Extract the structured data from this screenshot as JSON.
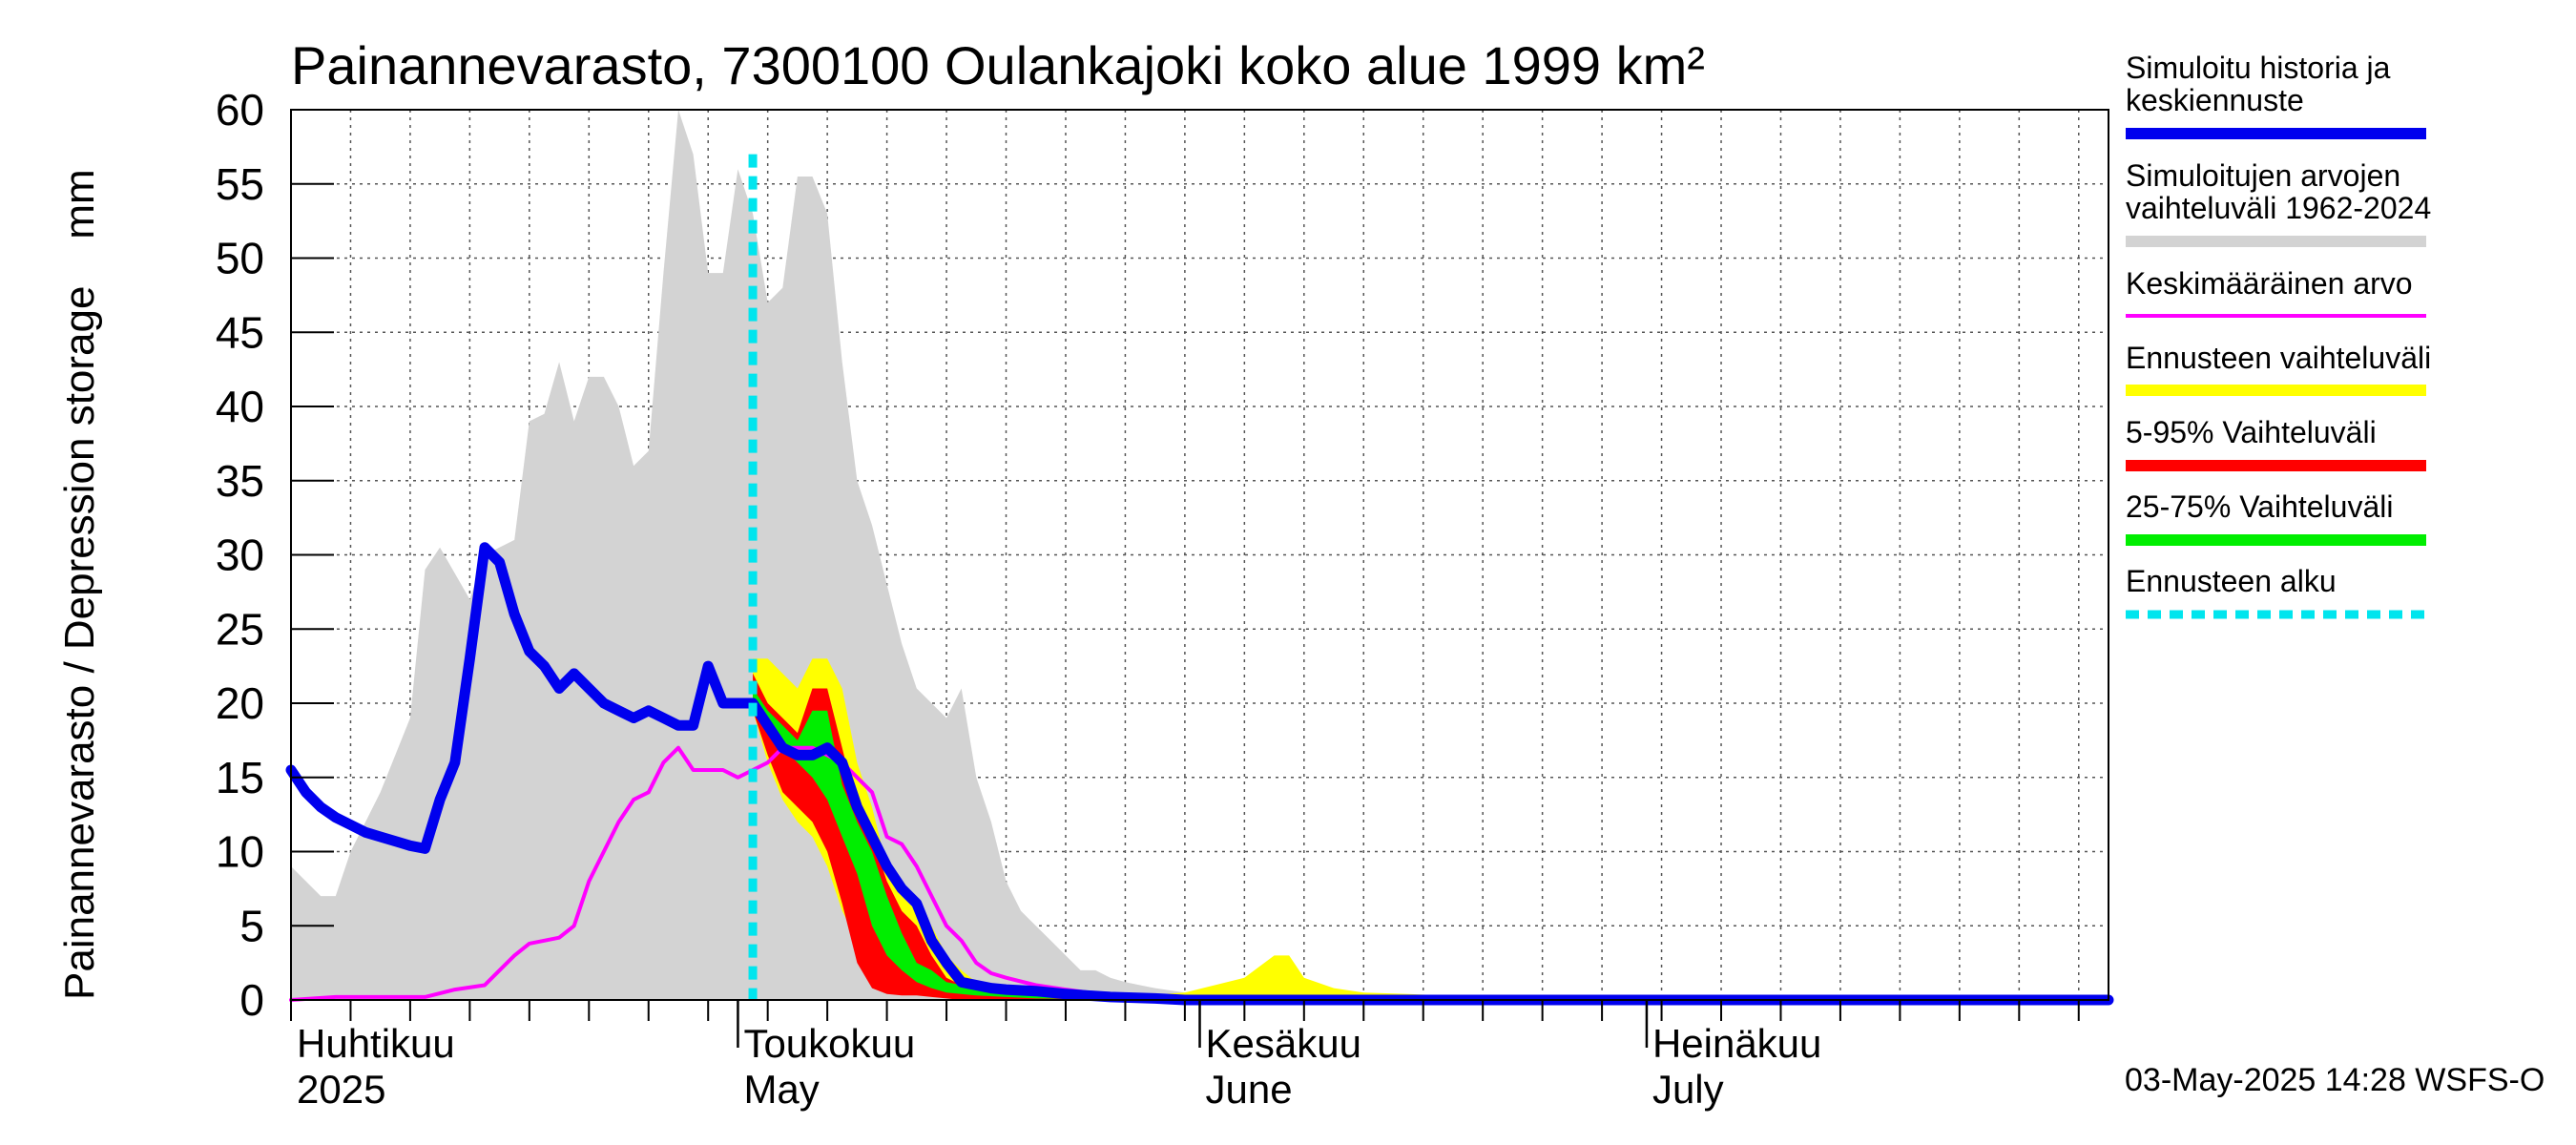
{
  "chart_data": {
    "type": "area",
    "title": "Painannevarasto, 7300100 Oulankajoki koko alue 1999 km²",
    "ylabel": "Painannevarasto / Depression storage    mm",
    "ylim": [
      0,
      60
    ],
    "yticks": [
      0,
      5,
      10,
      15,
      20,
      25,
      30,
      35,
      40,
      45,
      50,
      55,
      60
    ],
    "xlim_days": [
      0,
      122
    ],
    "x_unit": "days since 2025-03-31",
    "forecast_start_day": 31,
    "month_labels": [
      {
        "fi": "Huhtikuu",
        "en": "2025",
        "day": 0
      },
      {
        "fi": "Toukokuu",
        "en": "May",
        "day": 30
      },
      {
        "fi": "Kesäkuu",
        "en": "June",
        "day": 61
      },
      {
        "fi": "Heinäkuu",
        "en": "July",
        "day": 91
      }
    ],
    "legend": [
      {
        "label": "Simuloitu historia ja keskiennuste",
        "lines": [
          "Simuloitu historia ja",
          "keskiennuste"
        ],
        "color": "#0000ee"
      },
      {
        "label": "Simuloitujen arvojen vaihteluväli 1962-2024",
        "lines": [
          "Simuloitujen arvojen",
          "vaihteluväli 1962-2024"
        ],
        "color": "#d3d3d3"
      },
      {
        "label": "Keskimääräinen arvo",
        "lines": [
          "Keskimääräinen arvo"
        ],
        "color": "#ff00ff"
      },
      {
        "label": "Ennusteen vaihteluväli",
        "lines": [
          "Ennusteen vaihteluväli"
        ],
        "color": "#ffff00"
      },
      {
        "label": "5-95% Vaihteluväli",
        "lines": [
          "5-95% Vaihteluväli"
        ],
        "color": "#ff0000"
      },
      {
        "label": "25-75% Vaihteluväli",
        "lines": [
          "25-75% Vaihteluväli"
        ],
        "color": "#00ee00"
      },
      {
        "label": "Ennusteen alku",
        "lines": [
          "Ennusteen alku"
        ],
        "color": "#00e5ee"
      }
    ],
    "series": [
      {
        "name": "Simuloitujen arvojen vaihteluväli 1962-2024",
        "type": "band",
        "color": "#d3d3d3",
        "x": [
          0,
          2,
          3,
          4,
          6,
          8,
          9,
          10,
          12,
          13,
          15,
          16,
          17,
          18,
          19,
          20,
          21,
          22,
          23,
          24,
          25,
          26,
          27,
          28,
          29,
          30,
          31,
          32,
          33,
          34,
          35,
          36,
          37,
          38,
          39,
          40,
          41,
          42,
          43,
          44,
          45,
          46,
          47,
          48,
          49,
          50,
          51,
          52,
          53,
          54,
          55,
          56,
          57,
          58,
          60,
          62,
          63,
          64,
          65,
          66,
          67,
          68,
          70,
          72,
          122
        ],
        "lo": [
          0,
          0,
          0,
          0,
          0,
          0,
          0,
          0,
          0,
          0,
          0,
          0,
          0,
          0,
          0,
          0,
          0,
          0,
          0,
          0,
          0,
          0,
          0,
          0,
          0,
          0,
          0,
          0,
          0,
          0,
          0,
          0,
          0,
          0,
          0,
          0,
          0,
          0,
          0,
          0,
          0,
          0,
          0,
          0,
          0,
          0,
          0,
          0,
          0,
          0,
          0,
          0,
          0,
          0,
          0,
          0,
          0,
          0,
          0,
          0,
          0,
          0,
          0,
          0,
          0
        ],
        "hi": [
          9,
          7,
          7,
          10,
          14,
          19,
          29,
          30.5,
          27,
          30,
          31,
          39,
          39.5,
          43,
          39,
          42,
          42,
          40,
          36,
          37,
          49,
          60,
          57,
          49,
          49,
          56,
          53,
          47,
          48,
          55.5,
          55.5,
          53,
          43,
          35,
          32,
          28,
          24,
          21,
          20,
          19,
          21,
          15,
          12,
          8,
          6,
          5,
          4,
          3,
          2,
          2,
          1.5,
          1.2,
          1,
          0.8,
          0.5,
          0.3,
          0.2,
          0.1,
          0,
          0,
          0,
          0,
          0,
          0,
          0
        ]
      },
      {
        "name": "Ennusteen vaihteluväli",
        "type": "band",
        "color": "#ffff00",
        "x": [
          31,
          32,
          33,
          34,
          35,
          36,
          37,
          38,
          39,
          40,
          41,
          42,
          43,
          44,
          45,
          46,
          47,
          48,
          49,
          50,
          52,
          55,
          57,
          60,
          62,
          64,
          66,
          67,
          68,
          70,
          72,
          75,
          80,
          122
        ],
        "lo": [
          19.5,
          16,
          13.5,
          12,
          11,
          9,
          6,
          4,
          2,
          1,
          0.7,
          0.5,
          0.4,
          0.3,
          0.2,
          0.1,
          0.1,
          0,
          0,
          0,
          0,
          0,
          0,
          0,
          0,
          0,
          0,
          0,
          0,
          0,
          0,
          0,
          0,
          0
        ],
        "hi": [
          23,
          23,
          22,
          21,
          23,
          23,
          21,
          16,
          13,
          9,
          7,
          6,
          5,
          3,
          2,
          1.2,
          1,
          0.8,
          0.6,
          0.5,
          0.4,
          0.3,
          0.3,
          0.5,
          1,
          1.5,
          3,
          3,
          1.5,
          0.8,
          0.5,
          0.4,
          0.2,
          0
        ]
      },
      {
        "name": "5-95% Vaihteluväli",
        "type": "band",
        "color": "#ff0000",
        "x": [
          31,
          32,
          33,
          34,
          35,
          36,
          37,
          38,
          39,
          40,
          41,
          42,
          43,
          44,
          45,
          46,
          47,
          48,
          50,
          55,
          60,
          122
        ],
        "lo": [
          19.5,
          16.5,
          14,
          13,
          12,
          10,
          6.5,
          2.5,
          0.8,
          0.4,
          0.3,
          0.3,
          0.2,
          0.1,
          0,
          0,
          0,
          0,
          0,
          0,
          0,
          0
        ],
        "hi": [
          22,
          20,
          19,
          18,
          21,
          21,
          17,
          13,
          11,
          8,
          6,
          5,
          3,
          1.5,
          1,
          0.8,
          0.6,
          0.5,
          0.4,
          0.2,
          0.1,
          0
        ]
      },
      {
        "name": "25-75% Vaihteluväli",
        "type": "band",
        "color": "#00ee00",
        "x": [
          31,
          32,
          33,
          34,
          35,
          36,
          37,
          38,
          39,
          40,
          41,
          42,
          43,
          44,
          45,
          46,
          48,
          50,
          55,
          60,
          122
        ],
        "lo": [
          20,
          18.5,
          17,
          16,
          15,
          13.5,
          11,
          8.5,
          5,
          3,
          2,
          1.2,
          0.8,
          0.5,
          0.4,
          0.3,
          0.2,
          0.1,
          0.05,
          0,
          0
        ],
        "hi": [
          21,
          19.5,
          18.5,
          17.5,
          19.5,
          19.5,
          14.5,
          12,
          10,
          7,
          4.5,
          2.5,
          2,
          1.2,
          1,
          0.8,
          0.6,
          0.4,
          0.2,
          0.1,
          0
        ]
      },
      {
        "name": "Keskimääräinen arvo",
        "type": "line",
        "color": "#ff00ff",
        "x": [
          0,
          3,
          6,
          9,
          11,
          13,
          14,
          15,
          16,
          17,
          18,
          19,
          20,
          21,
          22,
          23,
          24,
          25,
          26,
          27,
          28,
          29,
          30,
          31,
          32,
          33,
          34,
          35,
          36,
          37,
          38,
          39,
          40,
          41,
          42,
          43,
          44,
          45,
          46,
          47,
          48,
          50,
          52,
          55,
          60,
          65,
          122
        ],
        "y": [
          0,
          0.2,
          0.2,
          0.2,
          0.7,
          1,
          2,
          3,
          3.8,
          4,
          4.2,
          5,
          8,
          10,
          12,
          13.5,
          14,
          16,
          17,
          15.5,
          15.5,
          15.5,
          15,
          15.5,
          16,
          17,
          17,
          17,
          16.5,
          16,
          15,
          14,
          11,
          10.5,
          9,
          7,
          5,
          4,
          2.5,
          1.8,
          1.5,
          1,
          0.7,
          0.3,
          0.1,
          0,
          0
        ]
      },
      {
        "name": "Simuloitu historia ja keskiennuste",
        "type": "line",
        "color": "#0000ee",
        "x": [
          0,
          1,
          2,
          3,
          4,
          5,
          6,
          7,
          8,
          9,
          10,
          11,
          12,
          13,
          14,
          15,
          16,
          17,
          18,
          19,
          20,
          21,
          22,
          23,
          24,
          25,
          26,
          27,
          28,
          29,
          30,
          31,
          32,
          33,
          34,
          35,
          36,
          37,
          38,
          39,
          40,
          41,
          42,
          43,
          44,
          45,
          46,
          47,
          48,
          50,
          52,
          55,
          58,
          60,
          62,
          65,
          70,
          122
        ],
        "y": [
          15.5,
          14,
          13,
          12.3,
          11.8,
          11.3,
          11,
          10.7,
          10.4,
          10.2,
          13.5,
          16,
          23,
          30.5,
          29.5,
          26,
          23.5,
          22.5,
          21,
          22,
          21,
          20,
          19.5,
          19,
          19.5,
          19,
          18.5,
          18.5,
          22.5,
          20,
          20,
          20,
          18.5,
          17,
          16.5,
          16.5,
          17,
          16,
          13,
          11,
          9,
          7.5,
          6.5,
          4,
          2.5,
          1.2,
          1,
          0.8,
          0.7,
          0.6,
          0.4,
          0.2,
          0.1,
          0,
          0,
          0,
          0,
          0
        ]
      }
    ],
    "timestamp": "03-May-2025 14:28 WSFS-O"
  }
}
